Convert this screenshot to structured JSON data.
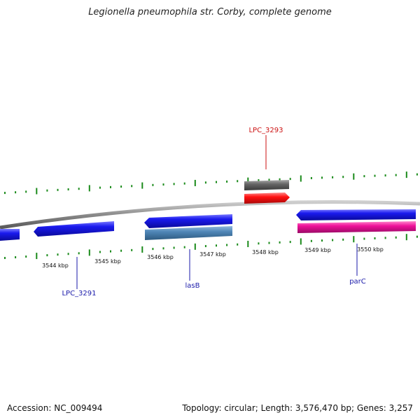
{
  "title": "Legionella pneumophila str. Corby, complete genome",
  "accession": "Accession: NC_009494",
  "summary": "Topology: circular; Length: 3,576,470 bp; Genes: 3,257",
  "colors": {
    "backbone": "#8a8a8a",
    "tick": "#1a8a1a",
    "gene_blue": "#1010dd",
    "gene_steel": "#4f86b7",
    "gene_pink": "#ee1199",
    "gene_red": "#ff1010",
    "gene_gray": "#666666",
    "label_blue": "#1a1aaa",
    "label_red": "#cc1111"
  },
  "scale": {
    "ticks": [
      "3544 kbp",
      "3545 kbp",
      "3546 kbp",
      "3547 kbp",
      "3548 kbp",
      "3549 kbp",
      "3550 kbp"
    ]
  },
  "features": [
    {
      "name": "",
      "color": "#1010dd"
    },
    {
      "name": "LPC_3291",
      "color": "#1010dd"
    },
    {
      "name": "",
      "color": "#1010dd"
    },
    {
      "name": "lasB",
      "color": "#4f86b7"
    },
    {
      "name": "LPC_3293",
      "color": "#666666"
    },
    {
      "name": "",
      "color": "#ff1010"
    },
    {
      "name": "",
      "color": "#1010dd"
    },
    {
      "name": "parC",
      "color": "#ee1199"
    }
  ],
  "labels": [
    {
      "text": "LPC_3293",
      "color": "#cc1111"
    },
    {
      "text": "LPC_3291",
      "color": "#1a1aaa"
    },
    {
      "text": "lasB",
      "color": "#1a1aaa"
    },
    {
      "text": "parC",
      "color": "#1a1aaa"
    }
  ]
}
